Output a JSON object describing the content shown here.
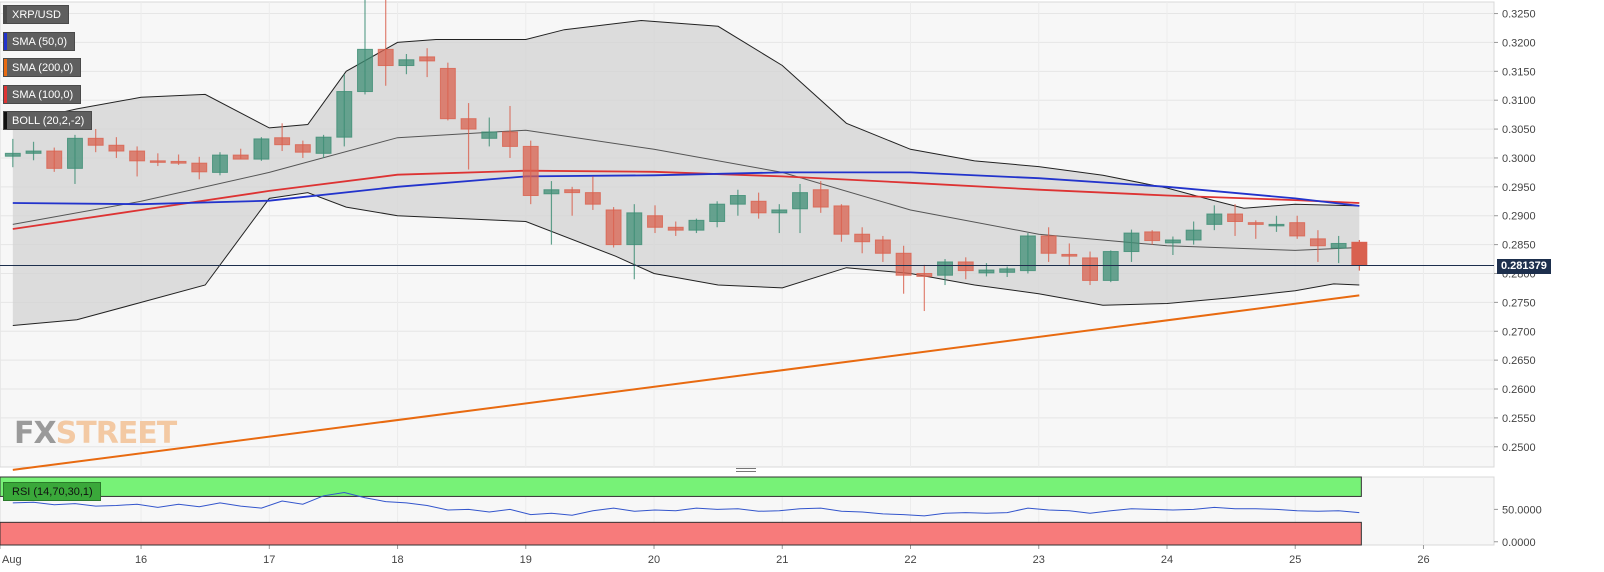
{
  "indicators": [
    {
      "label": "XRP/USD",
      "color": "#4a4a4a"
    },
    {
      "label": "SMA (50,0)",
      "color": "#2233cc"
    },
    {
      "label": "SMA (200,0)",
      "color": "#e86a10"
    },
    {
      "label": "SMA (100,0)",
      "color": "#dd3333"
    },
    {
      "label": "BOLL (20,2,-2)",
      "color": "#111111"
    }
  ],
  "current_price": "0.281379",
  "watermark": {
    "part1": "FX",
    "part2": "STREET"
  },
  "rsi_label": "RSI (14,70,30,1)",
  "colors": {
    "up": "#3d8d74",
    "down": "#d9614f",
    "sma50": "#2233cc",
    "sma100": "#dd3333",
    "sma200": "#e86a10",
    "boll_fill": "#d4d4d4",
    "rsi": "#3355cc",
    "rsi_over": "#77f277",
    "rsi_under": "#f77b7b"
  },
  "chart_data": {
    "type": "candlestick",
    "instrument": "XRP/USD",
    "y_ticks": [
      "0.3250",
      "0.3200",
      "0.3150",
      "0.3100",
      "0.3050",
      "0.3000",
      "0.2950",
      "0.2900",
      "0.2850",
      "0.2800",
      "0.2750",
      "0.2700",
      "0.2650",
      "0.2600",
      "0.2550",
      "0.2500"
    ],
    "y_range": [
      0.2465,
      0.327
    ],
    "x_ticks": [
      {
        "label": "Aug",
        "t": -0.1
      },
      {
        "label": "16",
        "t": 1
      },
      {
        "label": "17",
        "t": 2
      },
      {
        "label": "18",
        "t": 3
      },
      {
        "label": "19",
        "t": 4
      },
      {
        "label": "20",
        "t": 5
      },
      {
        "label": "21",
        "t": 6
      },
      {
        "label": "22",
        "t": 7
      },
      {
        "label": "23",
        "t": 8
      },
      {
        "label": "24",
        "t": 9
      },
      {
        "label": "25",
        "t": 10
      },
      {
        "label": "26",
        "t": 11
      }
    ],
    "x_range": [
      -0.1,
      11.55
    ],
    "candles": [
      [
        0.3003,
        0.3033,
        0.2984,
        0.3008
      ],
      [
        0.3008,
        0.3028,
        0.2996,
        0.3012
      ],
      [
        0.3012,
        0.3018,
        0.2976,
        0.2982
      ],
      [
        0.2982,
        0.304,
        0.2955,
        0.3034
      ],
      [
        0.3034,
        0.305,
        0.301,
        0.3022
      ],
      [
        0.3022,
        0.3036,
        0.3,
        0.3012
      ],
      [
        0.3012,
        0.302,
        0.2968,
        0.2995
      ],
      [
        0.2995,
        0.3008,
        0.2986,
        0.2994
      ],
      [
        0.2994,
        0.3006,
        0.2988,
        0.2991
      ],
      [
        0.2991,
        0.3002,
        0.2963,
        0.2976
      ],
      [
        0.2975,
        0.301,
        0.297,
        0.3005
      ],
      [
        0.3005,
        0.3016,
        0.2998,
        0.2998
      ],
      [
        0.2998,
        0.3036,
        0.2995,
        0.3033
      ],
      [
        0.3035,
        0.306,
        0.3012,
        0.3023
      ],
      [
        0.3023,
        0.303,
        0.3,
        0.301
      ],
      [
        0.3008,
        0.304,
        0.3,
        0.3036
      ],
      [
        0.3036,
        0.3145,
        0.302,
        0.3115
      ],
      [
        0.3115,
        0.3278,
        0.311,
        0.3188
      ],
      [
        0.3188,
        0.3275,
        0.3125,
        0.316
      ],
      [
        0.316,
        0.318,
        0.3145,
        0.317
      ],
      [
        0.3175,
        0.319,
        0.314,
        0.3168
      ],
      [
        0.3155,
        0.3165,
        0.3065,
        0.3068
      ],
      [
        0.3068,
        0.3095,
        0.298,
        0.305
      ],
      [
        0.3034,
        0.307,
        0.302,
        0.3045
      ],
      [
        0.3045,
        0.309,
        0.3,
        0.302
      ],
      [
        0.302,
        0.303,
        0.292,
        0.2935
      ],
      [
        0.2938,
        0.296,
        0.285,
        0.2945
      ],
      [
        0.2945,
        0.295,
        0.29,
        0.294
      ],
      [
        0.294,
        0.2968,
        0.291,
        0.292
      ],
      [
        0.291,
        0.2915,
        0.2845,
        0.285
      ],
      [
        0.285,
        0.292,
        0.279,
        0.2905
      ],
      [
        0.29,
        0.2918,
        0.287,
        0.288
      ],
      [
        0.288,
        0.289,
        0.2865,
        0.2875
      ],
      [
        0.2875,
        0.2895,
        0.287,
        0.2892
      ],
      [
        0.289,
        0.2925,
        0.288,
        0.292
      ],
      [
        0.292,
        0.2945,
        0.29,
        0.2935
      ],
      [
        0.2925,
        0.294,
        0.2895,
        0.2905
      ],
      [
        0.2905,
        0.292,
        0.287,
        0.291
      ],
      [
        0.2912,
        0.2955,
        0.287,
        0.294
      ],
      [
        0.2945,
        0.296,
        0.2905,
        0.2915
      ],
      [
        0.2917,
        0.292,
        0.2855,
        0.2868
      ],
      [
        0.2868,
        0.288,
        0.2835,
        0.2855
      ],
      [
        0.2858,
        0.2865,
        0.282,
        0.2835
      ],
      [
        0.2835,
        0.2848,
        0.2765,
        0.2797
      ],
      [
        0.28,
        0.2815,
        0.2735,
        0.2795
      ],
      [
        0.2797,
        0.2825,
        0.278,
        0.282
      ],
      [
        0.282,
        0.2828,
        0.279,
        0.2805
      ],
      [
        0.2801,
        0.2818,
        0.2795,
        0.2806
      ],
      [
        0.2802,
        0.2812,
        0.2794,
        0.2808
      ],
      [
        0.2805,
        0.287,
        0.28,
        0.2865
      ],
      [
        0.2865,
        0.288,
        0.282,
        0.2835
      ],
      [
        0.2833,
        0.2852,
        0.2815,
        0.283
      ],
      [
        0.2827,
        0.2838,
        0.278,
        0.2788
      ],
      [
        0.2788,
        0.284,
        0.2785,
        0.2838
      ],
      [
        0.2838,
        0.2876,
        0.282,
        0.287
      ],
      [
        0.2872,
        0.2875,
        0.285,
        0.2857
      ],
      [
        0.2853,
        0.2864,
        0.2832,
        0.2858
      ],
      [
        0.2858,
        0.289,
        0.285,
        0.2875
      ],
      [
        0.2885,
        0.2918,
        0.2875,
        0.2903
      ],
      [
        0.2903,
        0.292,
        0.2865,
        0.289
      ],
      [
        0.2888,
        0.2892,
        0.286,
        0.2885
      ],
      [
        0.2883,
        0.29,
        0.2872,
        0.2885
      ],
      [
        0.2888,
        0.29,
        0.286,
        0.2865
      ],
      [
        0.286,
        0.2875,
        0.282,
        0.2848
      ],
      [
        0.2844,
        0.2865,
        0.2818,
        0.2852
      ],
      [
        0.2854,
        0.2858,
        0.2805,
        0.2814
      ]
    ],
    "sma50": [
      [
        0,
        0.2922
      ],
      [
        1,
        0.292
      ],
      [
        2,
        0.2926
      ],
      [
        3,
        0.295
      ],
      [
        4,
        0.2968
      ],
      [
        5,
        0.297
      ],
      [
        6,
        0.2975
      ],
      [
        7,
        0.2975
      ],
      [
        8,
        0.2965
      ],
      [
        9,
        0.295
      ],
      [
        10,
        0.293
      ],
      [
        10.5,
        0.2917
      ]
    ],
    "sma100": [
      [
        0,
        0.2877
      ],
      [
        1,
        0.291
      ],
      [
        2,
        0.2943
      ],
      [
        3,
        0.2971
      ],
      [
        4,
        0.2978
      ],
      [
        5,
        0.2976
      ],
      [
        6,
        0.2968
      ],
      [
        7,
        0.2957
      ],
      [
        8,
        0.2945
      ],
      [
        9,
        0.2935
      ],
      [
        10,
        0.2927
      ],
      [
        10.5,
        0.2922
      ]
    ],
    "sma200": [
      [
        0,
        0.246
      ],
      [
        10.5,
        0.2762
      ]
    ],
    "boll_upper": [
      [
        0,
        0.306
      ],
      [
        0.5,
        0.3085
      ],
      [
        1,
        0.3105
      ],
      [
        1.5,
        0.311
      ],
      [
        2,
        0.3052
      ],
      [
        2.3,
        0.3058
      ],
      [
        2.6,
        0.315
      ],
      [
        3,
        0.32
      ],
      [
        3.3,
        0.3205
      ],
      [
        4,
        0.3205
      ],
      [
        4.3,
        0.3222
      ],
      [
        4.9,
        0.3238
      ],
      [
        5.5,
        0.3228
      ],
      [
        6,
        0.316
      ],
      [
        6.5,
        0.306
      ],
      [
        7,
        0.3015
      ],
      [
        7.5,
        0.2995
      ],
      [
        8,
        0.2985
      ],
      [
        8.5,
        0.297
      ],
      [
        9,
        0.2948
      ],
      [
        9.3,
        0.293
      ],
      [
        9.6,
        0.2913
      ],
      [
        10,
        0.292
      ],
      [
        10.5,
        0.2917
      ]
    ],
    "boll_middle": [
      [
        0,
        0.2885
      ],
      [
        1,
        0.2925
      ],
      [
        2,
        0.2975
      ],
      [
        3,
        0.3035
      ],
      [
        4,
        0.3048
      ],
      [
        5,
        0.3015
      ],
      [
        6,
        0.2975
      ],
      [
        7,
        0.291
      ],
      [
        8,
        0.2868
      ],
      [
        9,
        0.2848
      ],
      [
        10,
        0.284
      ],
      [
        10.5,
        0.2845
      ]
    ],
    "boll_lower": [
      [
        0,
        0.271
      ],
      [
        0.5,
        0.272
      ],
      [
        1,
        0.275
      ],
      [
        1.5,
        0.278
      ],
      [
        2,
        0.293
      ],
      [
        2.3,
        0.294
      ],
      [
        2.6,
        0.2915
      ],
      [
        3,
        0.29
      ],
      [
        4,
        0.289
      ],
      [
        4.7,
        0.283
      ],
      [
        5,
        0.28
      ],
      [
        5.5,
        0.278
      ],
      [
        6,
        0.2775
      ],
      [
        6.5,
        0.281
      ],
      [
        7,
        0.28
      ],
      [
        7.5,
        0.278
      ],
      [
        8,
        0.2765
      ],
      [
        8.5,
        0.2745
      ],
      [
        9,
        0.2748
      ],
      [
        9.5,
        0.2758
      ],
      [
        10,
        0.277
      ],
      [
        10.3,
        0.2782
      ],
      [
        10.5,
        0.278
      ]
    ],
    "rsi": {
      "ticks": [
        "50.0000",
        "0.0000"
      ],
      "range": [
        -5,
        100
      ],
      "values": [
        60,
        61,
        57,
        59,
        55,
        56,
        58,
        53,
        58,
        54,
        60,
        55,
        52,
        63,
        58,
        71,
        76,
        68,
        62,
        60,
        56,
        49,
        50,
        46,
        50,
        42,
        44,
        41,
        48,
        52,
        47,
        49,
        48,
        52,
        50,
        51,
        47,
        48,
        51,
        52,
        47,
        46,
        43,
        42,
        40,
        44,
        45,
        44,
        45,
        52,
        49,
        48,
        44,
        48,
        51,
        50,
        49,
        50,
        53,
        51,
        51,
        50,
        48,
        47,
        48,
        45
      ]
    }
  }
}
